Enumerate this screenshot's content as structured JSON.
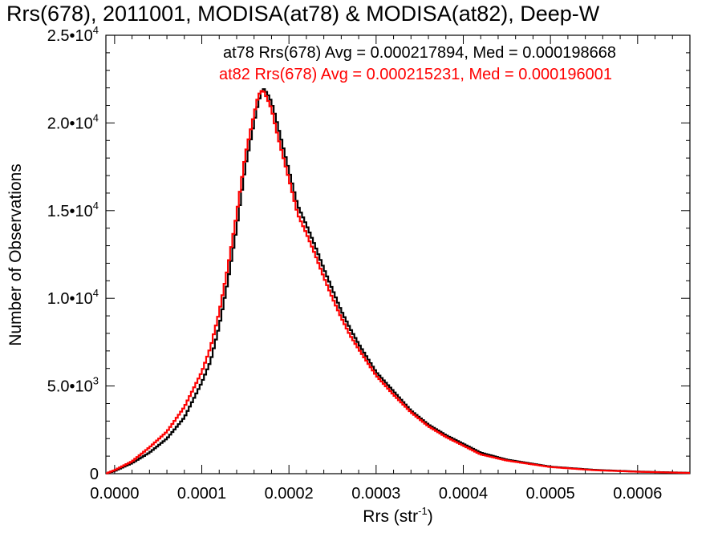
{
  "chart_data": {
    "type": "line",
    "title": "Rrs(678), 2011001, MODISA(at78) & MODISA(at82), Deep-W",
    "xlabel": "Rrs (str",
    "xlabel_sup": "-1",
    "xlabel_close": ")",
    "ylabel": "Number of Observations",
    "xlim": [
      -1e-05,
      0.00066
    ],
    "ylim": [
      0,
      25000
    ],
    "x_ticks": [
      {
        "value": 0.0,
        "label": "0.0000"
      },
      {
        "value": 0.0001,
        "label": "0.0001"
      },
      {
        "value": 0.0002,
        "label": "0.0002"
      },
      {
        "value": 0.0003,
        "label": "0.0003"
      },
      {
        "value": 0.0004,
        "label": "0.0004"
      },
      {
        "value": 0.0005,
        "label": "0.0005"
      },
      {
        "value": 0.0006,
        "label": "0.0006"
      }
    ],
    "y_ticks": [
      {
        "value": 0,
        "mant": "0",
        "exp": ""
      },
      {
        "value": 5000,
        "mant": "5.0•10",
        "exp": "3"
      },
      {
        "value": 10000,
        "mant": "1.0•10",
        "exp": "4"
      },
      {
        "value": 15000,
        "mant": "1.5•10",
        "exp": "4"
      },
      {
        "value": 20000,
        "mant": "2.0•10",
        "exp": "4"
      },
      {
        "value": 25000,
        "mant": "2.5•10",
        "exp": "4"
      }
    ],
    "annotations": [
      {
        "text": "at78 Rrs(678) Avg = 0.000217894, Med = 0.000198668",
        "color": "#000000"
      },
      {
        "text": "at82 Rrs(678) Avg = 0.000215231, Med = 0.000196001",
        "color": "#ff0000"
      }
    ],
    "grid": false,
    "style": "step",
    "series": [
      {
        "color": "#000000",
        "x": [
          -1e-05,
          0.0,
          2e-05,
          4e-05,
          6e-05,
          8e-05,
          0.0001,
          0.00011,
          0.00012,
          0.00013,
          0.00014,
          0.00015,
          0.00016,
          0.000165,
          0.00017,
          0.000175,
          0.00018,
          0.000185,
          0.00019,
          0.0002,
          0.00021,
          0.00022,
          0.00023,
          0.00024,
          0.00025,
          0.00026,
          0.00027,
          0.00028,
          0.0003,
          0.00032,
          0.00034,
          0.00036,
          0.00038,
          0.0004,
          0.00042,
          0.00045,
          0.0005,
          0.00055,
          0.0006,
          0.00066
        ],
        "y": [
          0,
          150,
          600,
          1200,
          2000,
          3200,
          5200,
          6400,
          8400,
          11000,
          14000,
          17500,
          20000,
          21200,
          22000,
          21700,
          21200,
          20300,
          19300,
          17300,
          15300,
          14200,
          13000,
          11700,
          10500,
          9300,
          8300,
          7400,
          5800,
          4700,
          3600,
          2800,
          2200,
          1700,
          1200,
          800,
          400,
          220,
          120,
          50
        ]
      },
      {
        "color": "#ff0000",
        "x": [
          -1e-05,
          0.0,
          2e-05,
          4e-05,
          6e-05,
          8e-05,
          0.0001,
          0.00011,
          0.00012,
          0.00013,
          0.00014,
          0.00015,
          0.00016,
          0.000165,
          0.00017,
          0.000175,
          0.00018,
          0.000185,
          0.00019,
          0.0002,
          0.00021,
          0.00022,
          0.00023,
          0.00024,
          0.00025,
          0.00026,
          0.00027,
          0.00028,
          0.0003,
          0.00032,
          0.00034,
          0.00036,
          0.00038,
          0.0004,
          0.00042,
          0.00045,
          0.0005,
          0.00055,
          0.0006,
          0.00066
        ],
        "y": [
          0,
          200,
          700,
          1500,
          2400,
          3800,
          5800,
          7200,
          9200,
          11800,
          14800,
          18200,
          20500,
          21600,
          21900,
          21400,
          20800,
          19700,
          18700,
          16800,
          14800,
          13700,
          12500,
          11200,
          10000,
          8900,
          7900,
          7100,
          5600,
          4500,
          3500,
          2700,
          2100,
          1600,
          1100,
          750,
          380,
          200,
          110,
          40
        ]
      }
    ]
  }
}
